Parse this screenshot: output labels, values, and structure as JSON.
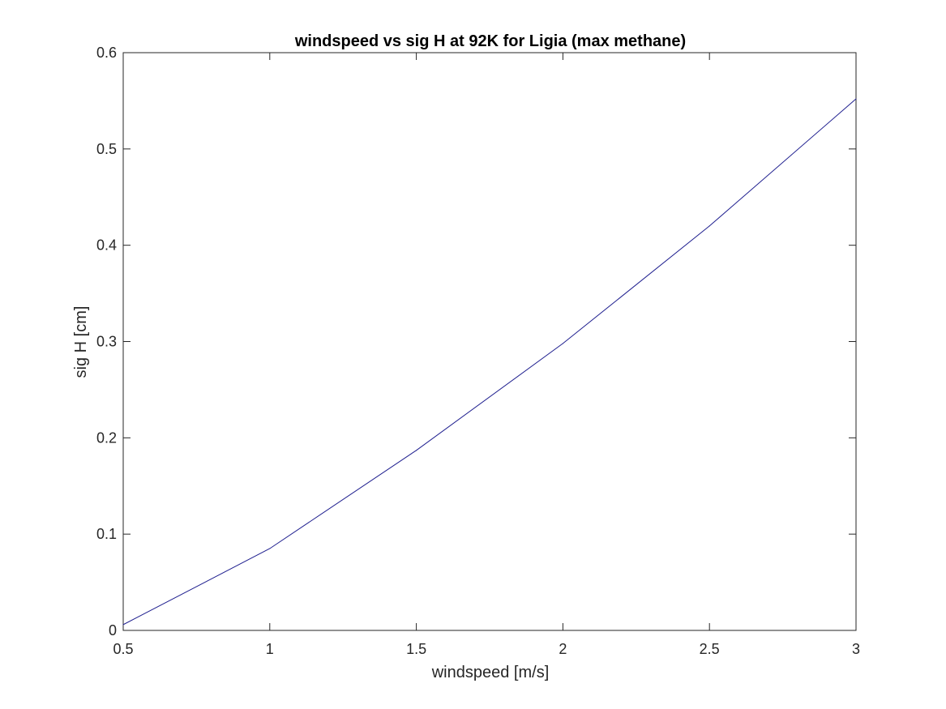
{
  "chart_data": {
    "type": "line",
    "title": "windspeed vs sig H at 92K for Ligia (max methane)",
    "xlabel": "windspeed [m/s]",
    "ylabel": "sig H [cm]",
    "xlim": [
      0.5,
      3
    ],
    "ylim": [
      0,
      0.6
    ],
    "xticks": [
      0.5,
      1,
      1.5,
      2,
      2.5,
      3
    ],
    "xtick_labels": [
      "0.5",
      "1",
      "1.5",
      "2",
      "2.5",
      "3"
    ],
    "yticks": [
      0,
      0.1,
      0.2,
      0.3,
      0.4,
      0.5,
      0.6
    ],
    "ytick_labels": [
      "0",
      "0.1",
      "0.2",
      "0.3",
      "0.4",
      "0.5",
      "0.6"
    ],
    "grid": false,
    "series": [
      {
        "x": [
          0.5,
          1,
          1.5,
          2,
          2.5,
          3
        ],
        "y": [
          0.006,
          0.085,
          0.187,
          0.298,
          0.42,
          0.552
        ],
        "color": "#1f1f8f"
      }
    ]
  }
}
